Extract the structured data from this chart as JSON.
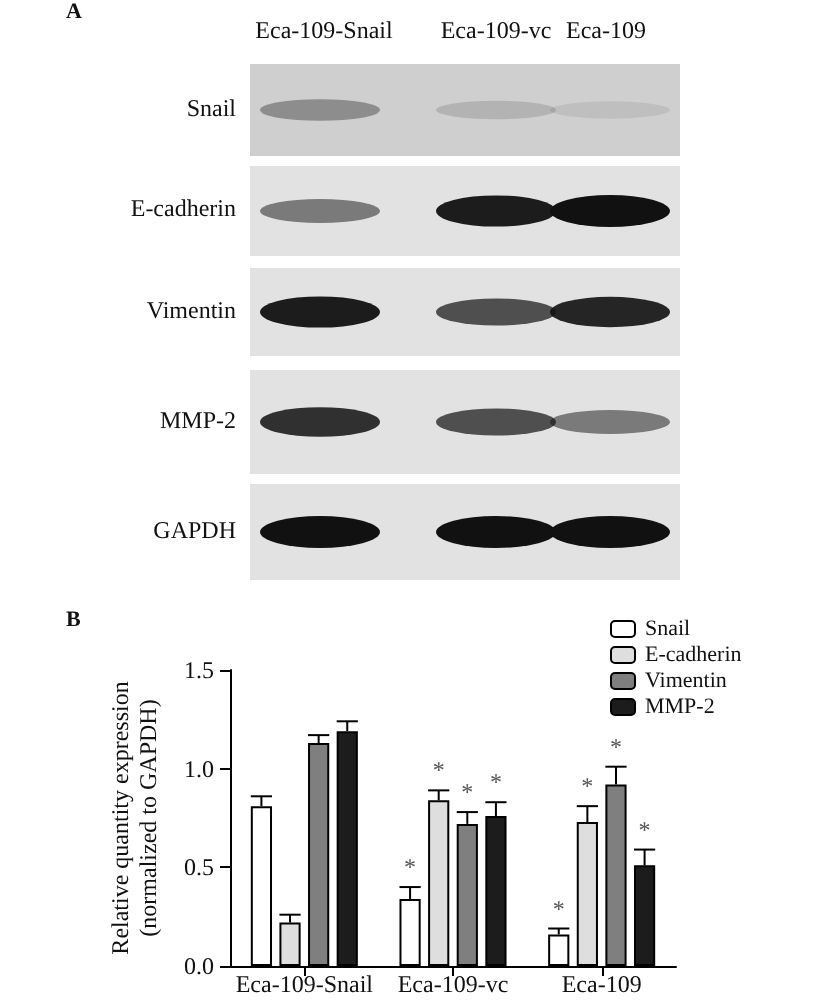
{
  "chart_data": {
    "type": "bar",
    "categories": [
      "Eca-109-Snail",
      "Eca-109-vc",
      "Eca-109"
    ],
    "ylabel": "Relative quantity expression\n(normalized to GAPDH)",
    "ylim": [
      0,
      1.5
    ],
    "yticks": [
      {
        "value": 0,
        "label": "0.0"
      },
      {
        "value": 0.5,
        "label": "0.5"
      },
      {
        "value": 1,
        "label": "1.0"
      },
      {
        "value": 1.5,
        "label": "1.5"
      }
    ],
    "series": [
      {
        "name": "Snail",
        "color": "#ffffff",
        "values": [
          0.81,
          0.34,
          0.16
        ],
        "errors": [
          0.05,
          0.06,
          0.03
        ],
        "value_labels": [
          null,
          "*",
          "*"
        ]
      },
      {
        "name": "E-cadherin",
        "color": "#dedede",
        "values": [
          0.22,
          0.84,
          0.73
        ],
        "errors": [
          0.04,
          0.05,
          0.08
        ],
        "value_labels": [
          null,
          "*",
          "*"
        ]
      },
      {
        "name": "Vimentin",
        "color": "#7f7f7f",
        "values": [
          1.13,
          0.72,
          0.92
        ],
        "errors": [
          0.04,
          0.06,
          0.09
        ],
        "value_labels": [
          null,
          "*",
          "*"
        ]
      },
      {
        "name": "MMP-2",
        "color": "#1c1c1c",
        "values": [
          1.19,
          0.76,
          0.51
        ],
        "errors": [
          0.05,
          0.07,
          0.08
        ],
        "value_labels": [
          null,
          "*",
          "*"
        ]
      }
    ],
    "legend": "top right",
    "grid": false,
    "annotations": [
      "A",
      "Eca-109-Snail",
      "Eca-109-vc",
      "Eca-109",
      "Snail",
      "E-cadherin",
      "Vimentin",
      "MMP-2",
      "GAPDH",
      "B"
    ]
  }
}
